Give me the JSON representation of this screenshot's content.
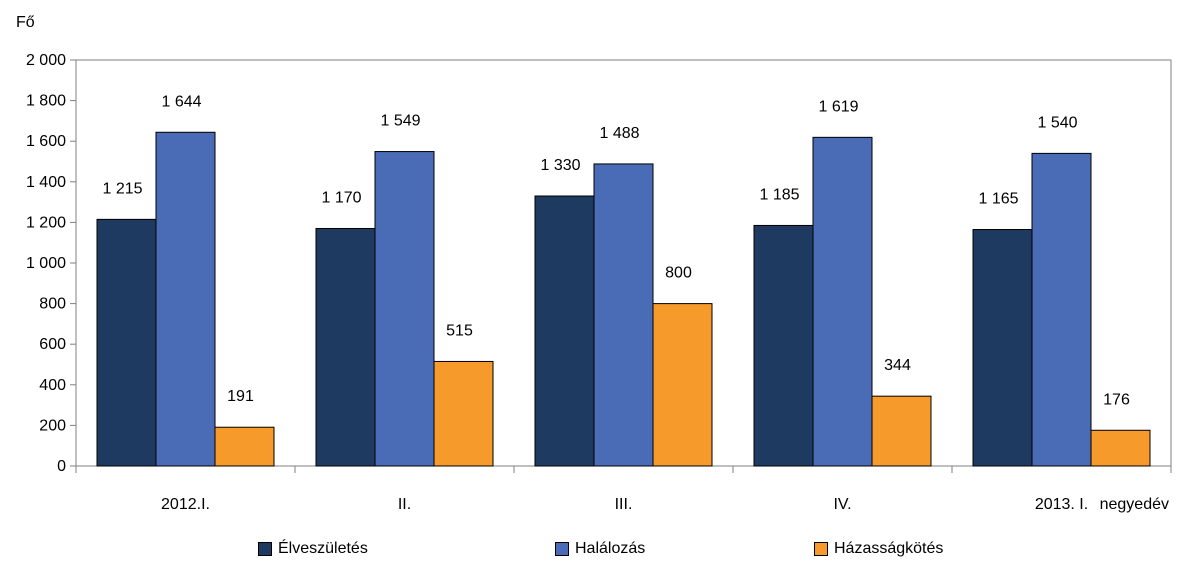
{
  "chart_data": {
    "type": "bar",
    "ylabel": "Fő",
    "ylim": [
      0,
      2000
    ],
    "yticks": [
      0,
      200,
      400,
      600,
      800,
      1000,
      1200,
      1400,
      1600,
      1800,
      2000
    ],
    "ytick_labels": [
      "0",
      "200",
      "400",
      "600",
      "800",
      "1 000",
      "1 200",
      "1 400",
      "1 600",
      "1 800",
      "2 000"
    ],
    "categories": [
      "2012.I.",
      "II.",
      "III.",
      "IV.",
      "2013. I."
    ],
    "x_suffix_label": "negyedév",
    "grid": false,
    "legend_position": "bottom",
    "series": [
      {
        "name": "Élveszületés",
        "color": "#1f3a60",
        "values": [
          1215,
          1170,
          1330,
          1185,
          1165
        ],
        "labels": [
          "1 215",
          "1 170",
          "1 330",
          "1 185",
          "1 165"
        ]
      },
      {
        "name": "Halálozás",
        "color": "#4a6bb5",
        "values": [
          1644,
          1549,
          1488,
          1619,
          1540
        ],
        "labels": [
          "1 644",
          "1 549",
          "1 488",
          "1 619",
          "1 540"
        ]
      },
      {
        "name": "Házasságkötés",
        "color": "#f59a2b",
        "values": [
          191,
          515,
          800,
          344,
          176
        ],
        "labels": [
          "191",
          "515",
          "800",
          "344",
          "176"
        ]
      }
    ]
  }
}
